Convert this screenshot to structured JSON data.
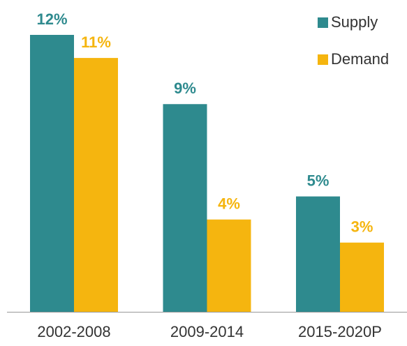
{
  "chart_data": {
    "type": "bar",
    "categories": [
      "2002-2008",
      "2009-2014",
      "2015-2020P"
    ],
    "series": [
      {
        "name": "Supply",
        "color": "#2e8a8e",
        "values": [
          12,
          9,
          5
        ],
        "value_labels": [
          "12%",
          "9%",
          "5%"
        ]
      },
      {
        "name": "Demand",
        "color": "#f5b50f",
        "values": [
          11,
          4,
          3
        ],
        "value_labels": [
          "11%",
          "4%",
          "3%"
        ]
      }
    ],
    "legend": "upper right"
  }
}
